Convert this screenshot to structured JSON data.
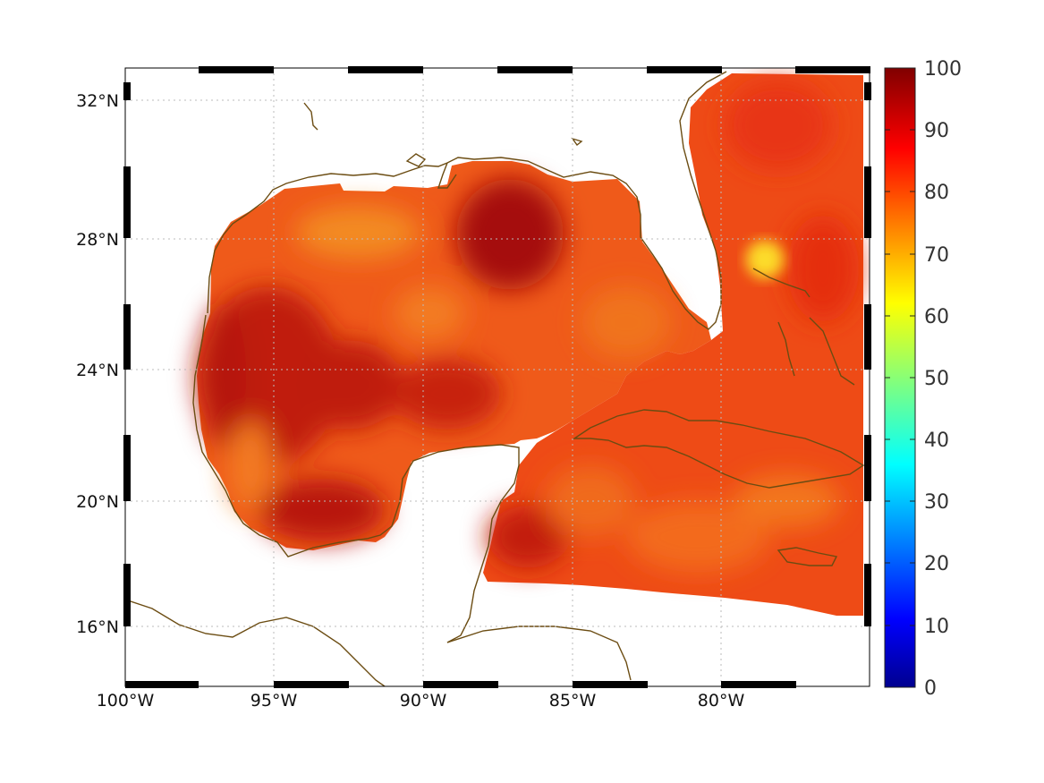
{
  "map": {
    "latitude_labels": [
      "32°N",
      "28°N",
      "24°N",
      "20°N",
      "16°N"
    ],
    "longitude_labels": [
      "100°W",
      "95°W",
      "90°W",
      "85°W",
      "80°W"
    ],
    "coastline_color": "#6b4c12",
    "grid_style": "dotted-gray",
    "frame": "black-white-checkered"
  },
  "colorbar": {
    "colormap": "jet",
    "range": [
      0,
      100
    ],
    "tick_labels": [
      "100",
      "90",
      "80",
      "70",
      "60",
      "50",
      "40",
      "30",
      "20",
      "10",
      "0"
    ]
  },
  "field": {
    "description_colors": {
      "low": "#f9a324",
      "mid": "#f06018",
      "high": "#e42d10",
      "peak": "#a80b08"
    }
  }
}
